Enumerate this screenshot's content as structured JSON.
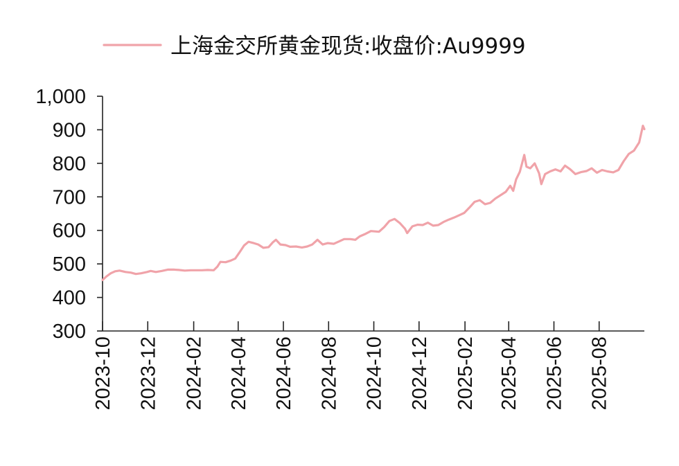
{
  "chart_data": {
    "type": "line",
    "title": "",
    "xlabel": "",
    "ylabel": "",
    "ylim": [
      300,
      1000
    ],
    "yticks": [
      300,
      400,
      500,
      600,
      700,
      800,
      900,
      1000
    ],
    "ytick_labels": [
      "300",
      "400",
      "500",
      "600",
      "700",
      "800",
      "900",
      "1,000"
    ],
    "xlim": [
      "2023-10-01",
      "2025-10-01"
    ],
    "xticks": [
      "2023-10",
      "2023-12",
      "2024-02",
      "2024-04",
      "2024-06",
      "2024-08",
      "2024-10",
      "2024-12",
      "2025-02",
      "2025-04",
      "2025-06",
      "2025-08"
    ],
    "grid": false,
    "legend": "top",
    "series": [
      {
        "name": "上海金交所黄金现货:收盘价:Au9999",
        "color": "#f0a3a9",
        "points": [
          [
            "2023-10-01",
            452
          ],
          [
            "2023-10-06",
            462
          ],
          [
            "2023-10-12",
            472
          ],
          [
            "2023-10-18",
            478
          ],
          [
            "2023-10-24",
            480
          ],
          [
            "2023-11-01",
            476
          ],
          [
            "2023-11-08",
            474
          ],
          [
            "2023-11-15",
            470
          ],
          [
            "2023-11-22",
            472
          ],
          [
            "2023-11-30",
            476
          ],
          [
            "2023-12-05",
            479
          ],
          [
            "2023-12-12",
            476
          ],
          [
            "2023-12-20",
            479
          ],
          [
            "2023-12-28",
            483
          ],
          [
            "2024-01-05",
            483
          ],
          [
            "2024-01-12",
            482
          ],
          [
            "2024-01-20",
            480
          ],
          [
            "2024-01-28",
            481
          ],
          [
            "2024-02-05",
            481
          ],
          [
            "2024-02-12",
            481
          ],
          [
            "2024-02-20",
            482
          ],
          [
            "2024-02-28",
            481
          ],
          [
            "2024-03-04",
            492
          ],
          [
            "2024-03-08",
            506
          ],
          [
            "2024-03-15",
            505
          ],
          [
            "2024-03-22",
            510
          ],
          [
            "2024-03-28",
            516
          ],
          [
            "2024-04-03",
            535
          ],
          [
            "2024-04-09",
            555
          ],
          [
            "2024-04-15",
            566
          ],
          [
            "2024-04-22",
            562
          ],
          [
            "2024-04-28",
            558
          ],
          [
            "2024-05-05",
            548
          ],
          [
            "2024-05-12",
            550
          ],
          [
            "2024-05-18",
            565
          ],
          [
            "2024-05-22",
            572
          ],
          [
            "2024-05-28",
            558
          ],
          [
            "2024-06-04",
            556
          ],
          [
            "2024-06-10",
            551
          ],
          [
            "2024-06-18",
            552
          ],
          [
            "2024-06-26",
            549
          ],
          [
            "2024-07-03",
            552
          ],
          [
            "2024-07-10",
            558
          ],
          [
            "2024-07-17",
            572
          ],
          [
            "2024-07-24",
            558
          ],
          [
            "2024-07-31",
            562
          ],
          [
            "2024-08-08",
            560
          ],
          [
            "2024-08-15",
            567
          ],
          [
            "2024-08-22",
            574
          ],
          [
            "2024-08-30",
            574
          ],
          [
            "2024-09-06",
            572
          ],
          [
            "2024-09-12",
            582
          ],
          [
            "2024-09-20",
            590
          ],
          [
            "2024-09-27",
            598
          ],
          [
            "2024-10-08",
            596
          ],
          [
            "2024-10-15",
            610
          ],
          [
            "2024-10-22",
            628
          ],
          [
            "2024-10-29",
            634
          ],
          [
            "2024-11-05",
            622
          ],
          [
            "2024-11-12",
            605
          ],
          [
            "2024-11-15",
            592
          ],
          [
            "2024-11-22",
            612
          ],
          [
            "2024-11-29",
            617
          ],
          [
            "2024-12-06",
            616
          ],
          [
            "2024-12-13",
            623
          ],
          [
            "2024-12-20",
            614
          ],
          [
            "2024-12-27",
            616
          ],
          [
            "2025-01-03",
            625
          ],
          [
            "2025-01-10",
            632
          ],
          [
            "2025-01-17",
            638
          ],
          [
            "2025-01-24",
            645
          ],
          [
            "2025-01-31",
            652
          ],
          [
            "2025-02-07",
            668
          ],
          [
            "2025-02-14",
            685
          ],
          [
            "2025-02-21",
            690
          ],
          [
            "2025-02-28",
            678
          ],
          [
            "2025-03-07",
            682
          ],
          [
            "2025-03-14",
            695
          ],
          [
            "2025-03-21",
            705
          ],
          [
            "2025-03-28",
            715
          ],
          [
            "2025-04-03",
            733
          ],
          [
            "2025-04-07",
            718
          ],
          [
            "2025-04-11",
            752
          ],
          [
            "2025-04-16",
            775
          ],
          [
            "2025-04-22",
            825
          ],
          [
            "2025-04-25",
            790
          ],
          [
            "2025-04-30",
            785
          ],
          [
            "2025-05-06",
            800
          ],
          [
            "2025-05-12",
            770
          ],
          [
            "2025-05-15",
            738
          ],
          [
            "2025-05-20",
            768
          ],
          [
            "2025-05-27",
            776
          ],
          [
            "2025-06-03",
            782
          ],
          [
            "2025-06-10",
            776
          ],
          [
            "2025-06-16",
            793
          ],
          [
            "2025-06-23",
            782
          ],
          [
            "2025-06-30",
            768
          ],
          [
            "2025-07-08",
            774
          ],
          [
            "2025-07-15",
            777
          ],
          [
            "2025-07-22",
            785
          ],
          [
            "2025-07-29",
            772
          ],
          [
            "2025-08-05",
            780
          ],
          [
            "2025-08-12",
            776
          ],
          [
            "2025-08-20",
            773
          ],
          [
            "2025-08-27",
            780
          ],
          [
            "2025-09-03",
            806
          ],
          [
            "2025-09-10",
            828
          ],
          [
            "2025-09-17",
            838
          ],
          [
            "2025-09-24",
            862
          ],
          [
            "2025-09-29",
            912
          ],
          [
            "2025-10-01",
            902
          ]
        ]
      }
    ]
  }
}
